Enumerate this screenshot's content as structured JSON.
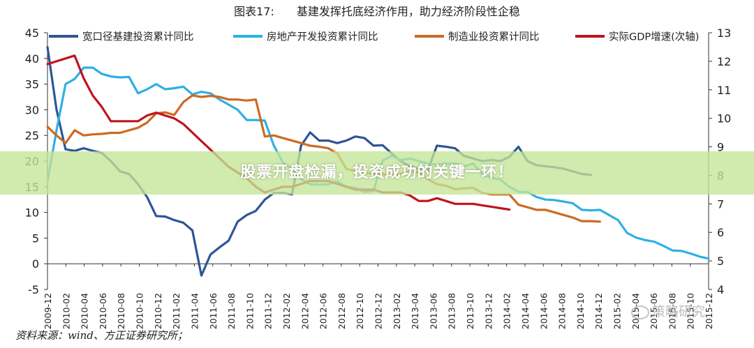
{
  "chart_data": {
    "type": "line",
    "title": "图表17:　　基建发挥托底经济作用，助力经济阶段性企稳",
    "categories": [
      "2009-12",
      "2010-02",
      "2010-04",
      "2010-06",
      "2010-08",
      "2010-10",
      "2010-12",
      "2011-02",
      "2011-04",
      "2011-06",
      "2011-08",
      "2011-10",
      "2011-12",
      "2012-02",
      "2012-04",
      "2012-06",
      "2012-08",
      "2012-10",
      "2012-12",
      "2013-02",
      "2013-04",
      "2013-06",
      "2013-08",
      "2013-10",
      "2013-12",
      "2014-02",
      "2014-04",
      "2014-06",
      "2014-08",
      "2014-10",
      "2014-12",
      "2015-02",
      "2015-04",
      "2015-06",
      "2015-08",
      "2015-10",
      "2015-12"
    ],
    "y_left": {
      "min": -5,
      "max": 45,
      "step": 5
    },
    "y_right": {
      "min": 4,
      "max": 13,
      "step": 1
    },
    "grid": false,
    "legend_position": "top",
    "series": [
      {
        "name": "宽口径基建投资累计同比",
        "axis": "left",
        "color": "#2e5596",
        "points": [
          [
            0,
            42.2
          ],
          [
            1,
            30
          ],
          [
            2,
            22.3
          ],
          [
            3,
            22
          ],
          [
            4,
            22.5
          ],
          [
            5,
            22
          ],
          [
            6,
            21.6
          ],
          [
            7,
            20
          ],
          [
            8,
            18
          ],
          [
            9,
            17.5
          ],
          [
            10,
            15.5
          ],
          [
            11,
            13
          ],
          [
            12,
            9.3
          ],
          [
            13,
            9.2
          ],
          [
            14,
            8.5
          ],
          [
            15,
            8
          ],
          [
            16,
            6.5
          ],
          [
            17,
            -2.3
          ],
          [
            18,
            1.8
          ],
          [
            19,
            3.2
          ],
          [
            20,
            4.5
          ],
          [
            21,
            8.2
          ],
          [
            22,
            9.5
          ],
          [
            23,
            10.3
          ],
          [
            24,
            12.5
          ],
          [
            25,
            13.8
          ],
          [
            26,
            13.8
          ],
          [
            27,
            13.5
          ],
          [
            28,
            23
          ],
          [
            29,
            25.6
          ],
          [
            30,
            24
          ],
          [
            31,
            24
          ],
          [
            32,
            23.5
          ],
          [
            33,
            24
          ],
          [
            34,
            24.8
          ],
          [
            35,
            24.5
          ],
          [
            36,
            23
          ],
          [
            37,
            23.1
          ],
          [
            38,
            21.5
          ],
          [
            39,
            20
          ],
          [
            40,
            19
          ],
          [
            41,
            18.5
          ],
          [
            42,
            18.2
          ],
          [
            43,
            23
          ],
          [
            44,
            22.8
          ],
          [
            45,
            22.5
          ],
          [
            46,
            21
          ],
          [
            47,
            20.5
          ],
          [
            48,
            20
          ],
          [
            49,
            20.2
          ],
          [
            50,
            20
          ],
          [
            51,
            20.8
          ],
          [
            52,
            22.8
          ],
          [
            53,
            20
          ],
          [
            54,
            19.2
          ],
          [
            55,
            19
          ],
          [
            56,
            18.8
          ],
          [
            57,
            18.5
          ],
          [
            58,
            18
          ],
          [
            59,
            17.5
          ],
          [
            60,
            17.3
          ]
        ]
      },
      {
        "name": "房地产开发投资累计同比",
        "axis": "left",
        "color": "#2eb0e3",
        "points": [
          [
            0,
            16
          ],
          [
            1,
            26
          ],
          [
            2,
            35
          ],
          [
            3,
            36
          ],
          [
            4,
            38.2
          ],
          [
            5,
            38.2
          ],
          [
            6,
            37
          ],
          [
            7,
            36.5
          ],
          [
            8,
            36.3
          ],
          [
            9,
            36.4
          ],
          [
            10,
            33.2
          ],
          [
            11,
            34
          ],
          [
            12,
            35
          ],
          [
            13,
            34
          ],
          [
            14,
            34.2
          ],
          [
            15,
            34.5
          ],
          [
            16,
            33
          ],
          [
            17,
            33.5
          ],
          [
            18,
            33.2
          ],
          [
            19,
            32
          ],
          [
            20,
            31
          ],
          [
            21,
            30
          ],
          [
            22,
            28
          ],
          [
            23,
            28
          ],
          [
            24,
            27.9
          ],
          [
            25,
            23
          ],
          [
            26,
            19.7
          ],
          [
            27,
            18.5
          ],
          [
            28,
            16.5
          ],
          [
            29,
            15.5
          ],
          [
            30,
            15.4
          ],
          [
            31,
            15.5
          ],
          [
            32,
            16
          ],
          [
            33,
            15
          ],
          [
            34,
            14.8
          ],
          [
            35,
            14
          ],
          [
            36,
            14.2
          ],
          [
            37,
            20.1
          ],
          [
            38,
            21
          ],
          [
            39,
            20.2
          ],
          [
            40,
            20.5
          ],
          [
            41,
            20
          ],
          [
            42,
            19.5
          ],
          [
            43,
            19.3
          ],
          [
            44,
            19.5
          ],
          [
            45,
            19.5
          ],
          [
            46,
            19
          ],
          [
            47,
            19.5
          ],
          [
            48,
            17.5
          ],
          [
            49,
            16.8
          ],
          [
            50,
            16.4
          ],
          [
            51,
            15
          ],
          [
            52,
            14
          ],
          [
            53,
            14
          ],
          [
            54,
            13
          ],
          [
            55,
            12.5
          ],
          [
            56,
            12.4
          ],
          [
            57,
            12.1
          ],
          [
            58,
            11.8
          ],
          [
            59,
            10.5
          ],
          [
            60,
            10.4
          ],
          [
            61,
            10.5
          ],
          [
            62,
            9.5
          ],
          [
            63,
            8.5
          ],
          [
            64,
            6
          ],
          [
            65,
            5.1
          ],
          [
            66,
            4.6
          ],
          [
            67,
            4.3
          ],
          [
            68,
            3.5
          ],
          [
            69,
            2.6
          ],
          [
            70,
            2.5
          ],
          [
            71,
            2
          ],
          [
            72,
            1.4
          ],
          [
            73,
            1
          ]
        ]
      },
      {
        "name": "制造业投资累计同比",
        "axis": "left",
        "color": "#cc6a22",
        "points": [
          [
            0,
            26.7
          ],
          [
            1,
            25
          ],
          [
            2,
            23.5
          ],
          [
            3,
            26
          ],
          [
            4,
            25
          ],
          [
            5,
            25.2
          ],
          [
            6,
            25.3
          ],
          [
            7,
            25.5
          ],
          [
            8,
            25.5
          ],
          [
            9,
            26
          ],
          [
            10,
            26.5
          ],
          [
            11,
            27.5
          ],
          [
            12,
            29.3
          ],
          [
            13,
            29.5
          ],
          [
            14,
            29
          ],
          [
            15,
            31.5
          ],
          [
            16,
            32.8
          ],
          [
            17,
            32.5
          ],
          [
            18,
            32.7
          ],
          [
            19,
            32.5
          ],
          [
            20,
            32
          ],
          [
            21,
            32
          ],
          [
            22,
            31.8
          ],
          [
            23,
            32
          ],
          [
            24,
            24.8
          ],
          [
            25,
            25
          ],
          [
            26,
            24.5
          ],
          [
            27,
            24
          ],
          [
            28,
            23.5
          ],
          [
            29,
            23
          ],
          [
            30,
            22.8
          ],
          [
            31,
            22.5
          ],
          [
            32,
            21.5
          ],
          [
            33,
            18.5
          ],
          [
            34,
            18
          ],
          [
            35,
            17.8
          ],
          [
            36,
            17.5
          ],
          [
            37,
            17.5
          ],
          [
            38,
            17.2
          ],
          [
            39,
            17.5
          ],
          [
            40,
            18
          ],
          [
            41,
            17.8
          ],
          [
            42,
            16.5
          ],
          [
            43,
            15.5
          ],
          [
            44,
            15.2
          ],
          [
            45,
            14.5
          ],
          [
            46,
            14.7
          ],
          [
            47,
            14.8
          ],
          [
            48,
            13.8
          ],
          [
            49,
            13.5
          ],
          [
            50,
            13.5
          ],
          [
            51,
            13.5
          ],
          [
            52,
            11.5
          ],
          [
            53,
            11
          ],
          [
            54,
            10.5
          ],
          [
            55,
            10.5
          ],
          [
            56,
            10
          ],
          [
            57,
            9.5
          ],
          [
            58,
            9
          ],
          [
            59,
            8.3
          ],
          [
            60,
            8.3
          ],
          [
            61,
            8.2
          ]
        ]
      },
      {
        "name": "实际GDP增速(次轴)",
        "axis": "right",
        "color": "#c0141c",
        "points": [
          [
            0,
            11.9
          ],
          [
            1,
            12.0
          ],
          [
            2,
            12.1
          ],
          [
            3,
            12.2
          ],
          [
            4,
            11.4
          ],
          [
            5,
            10.8
          ],
          [
            6,
            10.4
          ],
          [
            7,
            9.9
          ],
          [
            8,
            9.9
          ],
          [
            9,
            9.9
          ],
          [
            10,
            9.9
          ],
          [
            11,
            10.1
          ],
          [
            12,
            10.2
          ],
          [
            13,
            10.1
          ],
          [
            14,
            10.0
          ],
          [
            15,
            9.8
          ],
          [
            16,
            9.5
          ],
          [
            17,
            9.2
          ],
          [
            18,
            8.9
          ],
          [
            19,
            8.6
          ],
          [
            20,
            8.3
          ],
          [
            21,
            8.1
          ],
          [
            22,
            7.9
          ],
          [
            23,
            7.6
          ],
          [
            24,
            7.4
          ],
          [
            25,
            7.5
          ],
          [
            26,
            7.6
          ],
          [
            27,
            7.6
          ],
          [
            28,
            7.7
          ],
          [
            29,
            7.8
          ],
          [
            30,
            7.8
          ],
          [
            31,
            7.8
          ],
          [
            32,
            7.7
          ],
          [
            33,
            7.6
          ],
          [
            34,
            7.5
          ],
          [
            35,
            7.5
          ],
          [
            36,
            7.5
          ],
          [
            37,
            7.4
          ],
          [
            38,
            7.4
          ],
          [
            39,
            7.4
          ],
          [
            40,
            7.3
          ],
          [
            41,
            7.1
          ],
          [
            42,
            7.1
          ],
          [
            43,
            7.2
          ],
          [
            44,
            7.1
          ],
          [
            45,
            7.0
          ],
          [
            46,
            7.0
          ],
          [
            47,
            7.0
          ],
          [
            48,
            6.95
          ],
          [
            49,
            6.9
          ],
          [
            50,
            6.85
          ],
          [
            51,
            6.8
          ]
        ]
      }
    ],
    "source": "资料来源：wind、方正证券研究所；"
  },
  "overlay": {
    "banner_text": "股票开盘检漏，投资成功的关键一环！",
    "watermark": "策略研究"
  },
  "colors": {
    "axis": "#333333",
    "banner": "#c4e496"
  }
}
